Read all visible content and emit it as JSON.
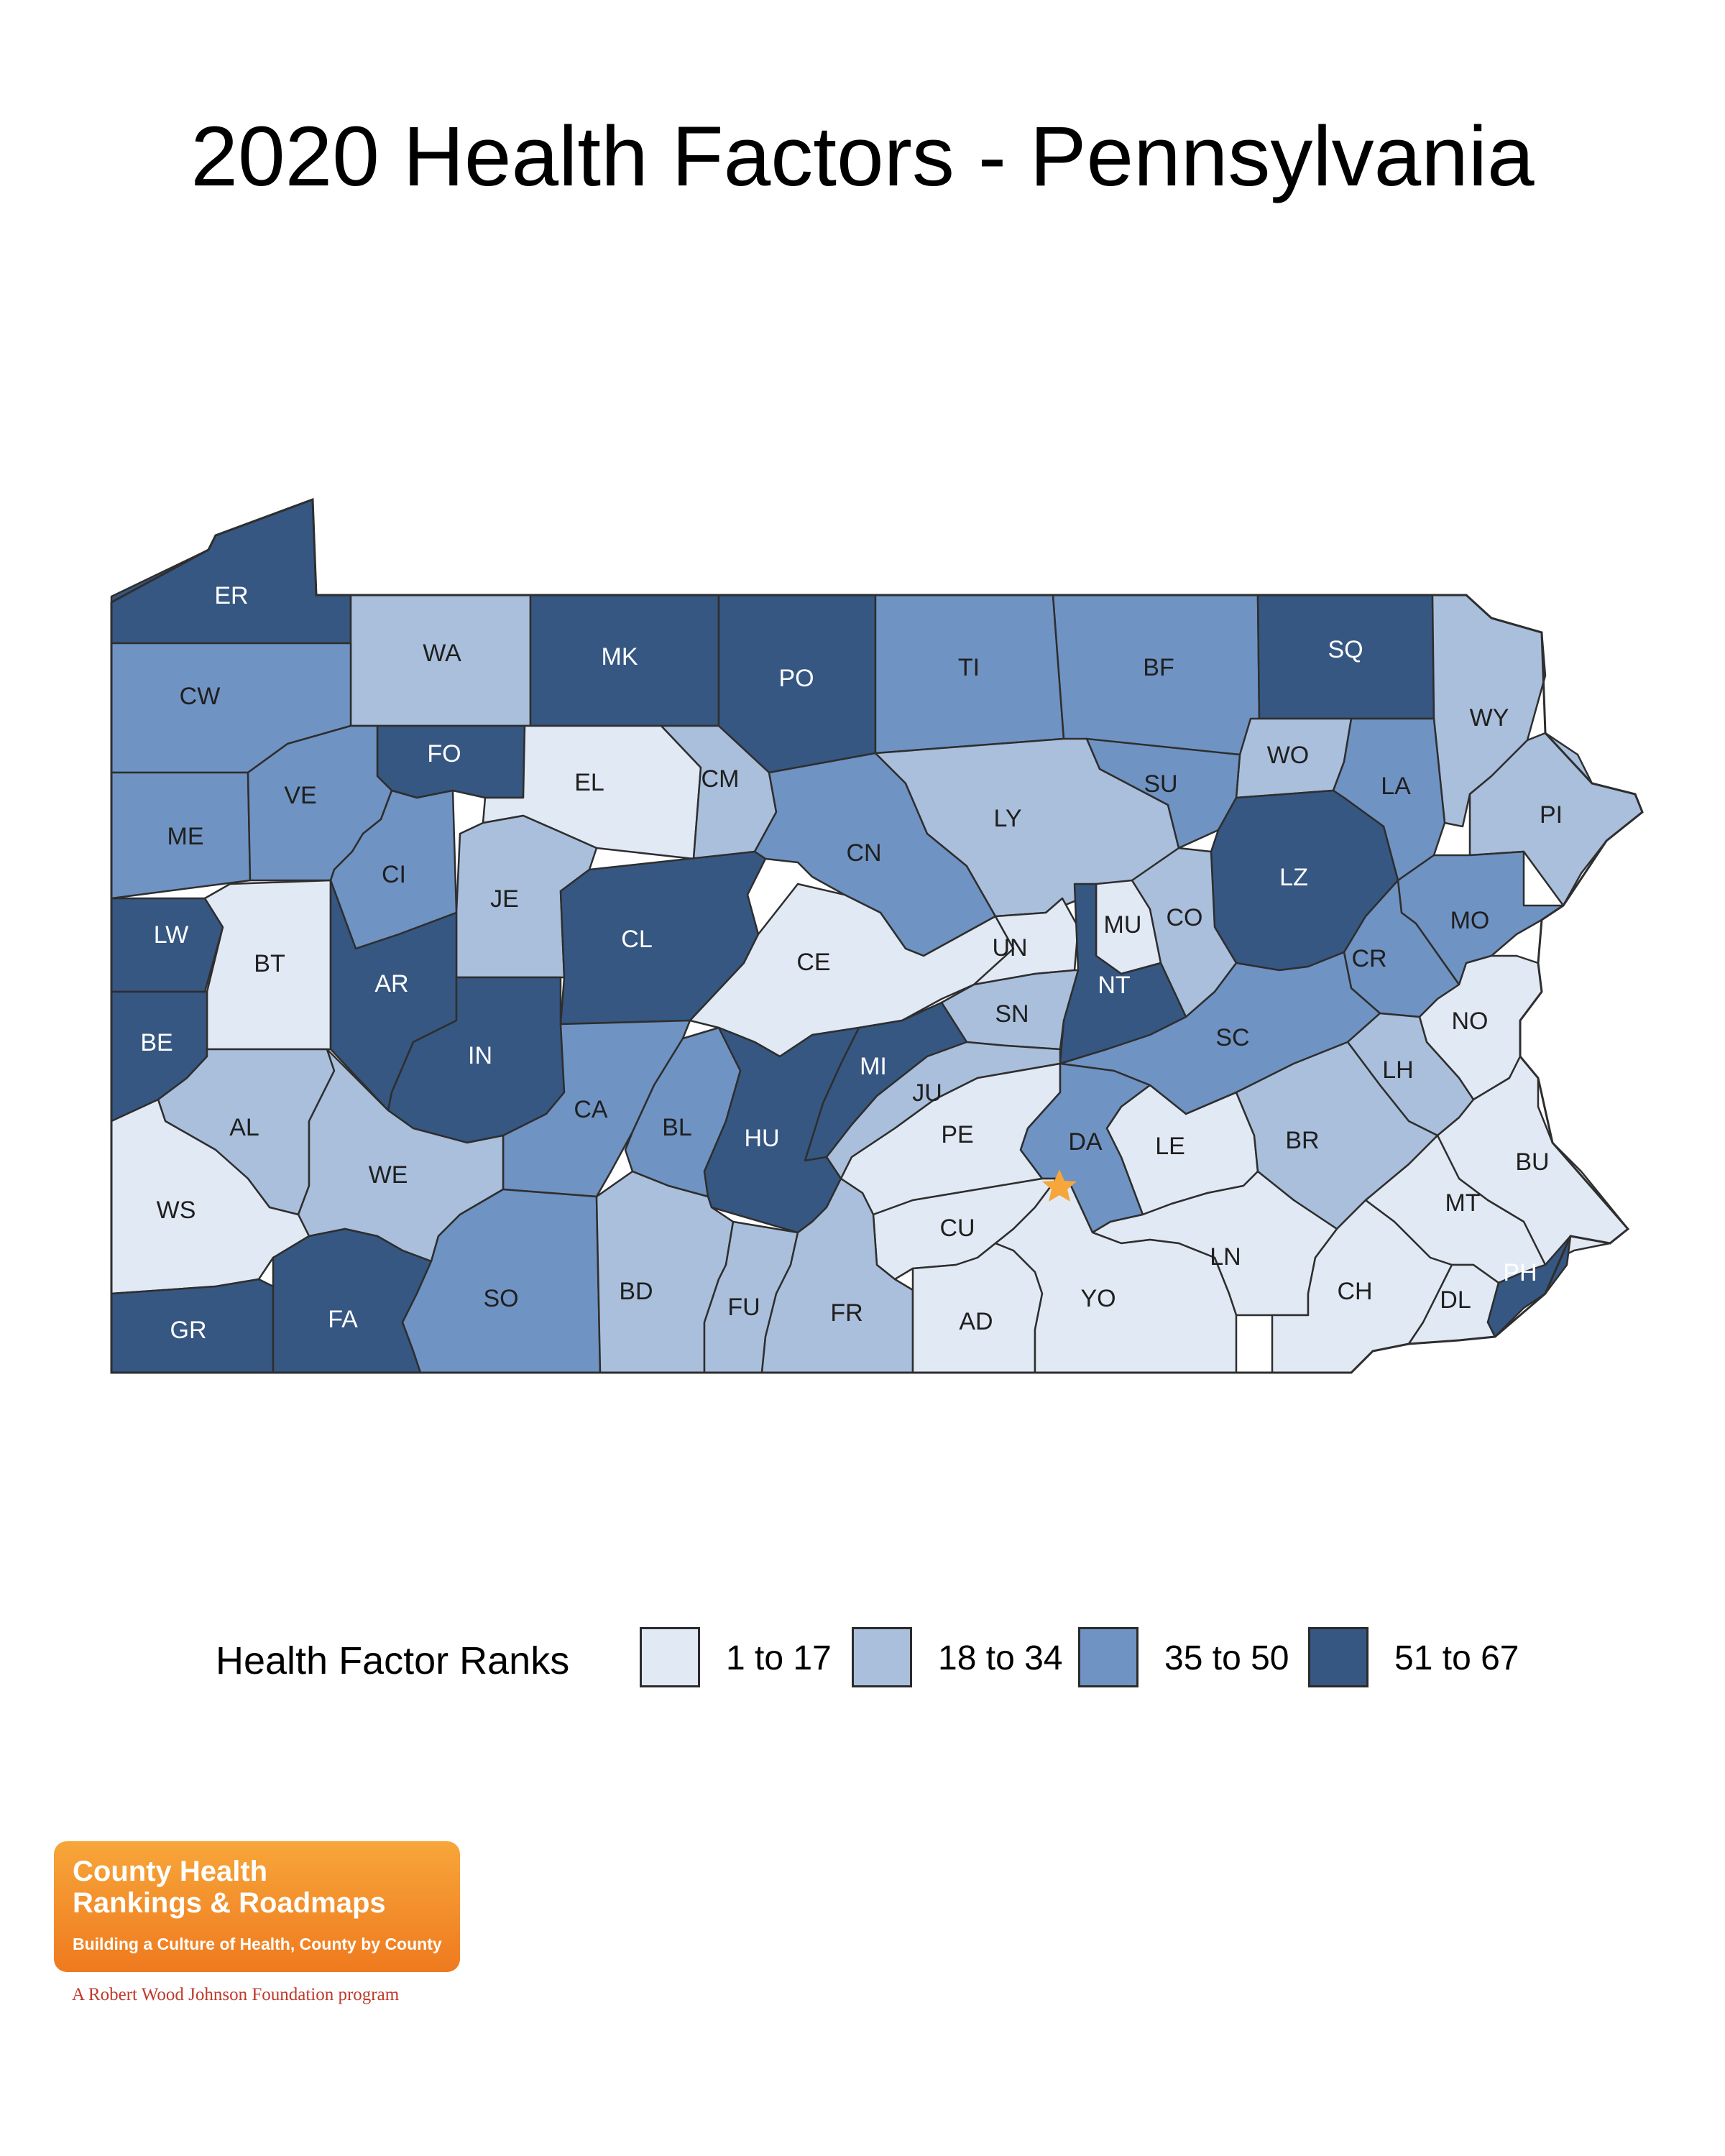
{
  "title": "2020 Health Factors - Pennsylvania",
  "legend": {
    "title": "Health Factor Ranks",
    "items": [
      {
        "label": "1 to 17",
        "color": "#e1e9f4"
      },
      {
        "label": "18 to 34",
        "color": "#a9bfdc"
      },
      {
        "label": "35 to 50",
        "color": "#6f93c3"
      },
      {
        "label": "51 to 67",
        "color": "#365782"
      }
    ]
  },
  "colors": {
    "border": "#2e2e2e",
    "star": "#f6a63a",
    "logo": "#f28c28"
  },
  "counties": [
    {
      "code": "ER",
      "cls": 3
    },
    {
      "code": "WA",
      "cls": 1
    },
    {
      "code": "MK",
      "cls": 3
    },
    {
      "code": "PO",
      "cls": 3
    },
    {
      "code": "TI",
      "cls": 2
    },
    {
      "code": "BF",
      "cls": 2
    },
    {
      "code": "SQ",
      "cls": 3
    },
    {
      "code": "WY",
      "cls": 1
    },
    {
      "code": "CW",
      "cls": 2
    },
    {
      "code": "FO",
      "cls": 3
    },
    {
      "code": "EL",
      "cls": 0
    },
    {
      "code": "CM",
      "cls": 1
    },
    {
      "code": "WO",
      "cls": 1
    },
    {
      "code": "LA",
      "cls": 2
    },
    {
      "code": "PI",
      "cls": 1
    },
    {
      "code": "ME",
      "cls": 2
    },
    {
      "code": "VE",
      "cls": 2
    },
    {
      "code": "CI",
      "cls": 2
    },
    {
      "code": "JE",
      "cls": 1
    },
    {
      "code": "CN",
      "cls": 2
    },
    {
      "code": "LY",
      "cls": 1
    },
    {
      "code": "SU",
      "cls": 2
    },
    {
      "code": "LZ",
      "cls": 3
    },
    {
      "code": "MO",
      "cls": 2
    },
    {
      "code": "LW",
      "cls": 3
    },
    {
      "code": "BT",
      "cls": 0
    },
    {
      "code": "AR",
      "cls": 3
    },
    {
      "code": "CL",
      "cls": 3
    },
    {
      "code": "CE",
      "cls": 0
    },
    {
      "code": "UN",
      "cls": 0
    },
    {
      "code": "MU",
      "cls": 0
    },
    {
      "code": "CO",
      "cls": 1
    },
    {
      "code": "CR",
      "cls": 2
    },
    {
      "code": "BE",
      "cls": 3
    },
    {
      "code": "IN",
      "cls": 3
    },
    {
      "code": "NT",
      "cls": 3
    },
    {
      "code": "SN",
      "cls": 1
    },
    {
      "code": "SC",
      "cls": 2
    },
    {
      "code": "NO",
      "cls": 0
    },
    {
      "code": "AL",
      "cls": 1
    },
    {
      "code": "CA",
      "cls": 2
    },
    {
      "code": "BL",
      "cls": 2
    },
    {
      "code": "MI",
      "cls": 3
    },
    {
      "code": "JU",
      "cls": 1
    },
    {
      "code": "LH",
      "cls": 1
    },
    {
      "code": "WE",
      "cls": 1
    },
    {
      "code": "HU",
      "cls": 3
    },
    {
      "code": "PE",
      "cls": 0
    },
    {
      "code": "DA",
      "cls": 2
    },
    {
      "code": "LE",
      "cls": 0
    },
    {
      "code": "BR",
      "cls": 1
    },
    {
      "code": "BU",
      "cls": 0
    },
    {
      "code": "WS",
      "cls": 0
    },
    {
      "code": "MT",
      "cls": 0
    },
    {
      "code": "CU",
      "cls": 0
    },
    {
      "code": "LN",
      "cls": 0
    },
    {
      "code": "GR",
      "cls": 3
    },
    {
      "code": "FA",
      "cls": 3
    },
    {
      "code": "SO",
      "cls": 2
    },
    {
      "code": "BD",
      "cls": 1
    },
    {
      "code": "FU",
      "cls": 1
    },
    {
      "code": "FR",
      "cls": 1
    },
    {
      "code": "AD",
      "cls": 0
    },
    {
      "code": "YO",
      "cls": 0
    },
    {
      "code": "CH",
      "cls": 0
    },
    {
      "code": "DL",
      "cls": 0
    },
    {
      "code": "PH",
      "cls": 3
    }
  ],
  "logo": {
    "line1": "County Health",
    "line2": "Rankings & Roadmaps",
    "tagline": "Building a Culture of Health, County by County",
    "foundation": "A Robert Wood Johnson Foundation program"
  }
}
